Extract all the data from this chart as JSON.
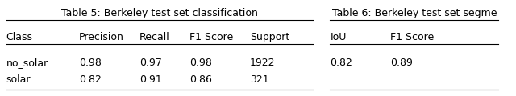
{
  "table5_title": "Table 5: Berkeley test set classification",
  "table5_headers": [
    "Class",
    "Precision",
    "Recall",
    "F1 Score",
    "Support"
  ],
  "table5_rows": [
    [
      "no_solar",
      "0.98",
      "0.97",
      "0.98",
      "1922"
    ],
    [
      "solar",
      "0.82",
      "0.91",
      "0.86",
      "321"
    ]
  ],
  "table6_title": "Table 6: Berkeley test set segme",
  "table6_headers": [
    "IoU",
    "F1 Score"
  ],
  "table6_rows": [
    [
      "0.82",
      "0.89"
    ]
  ],
  "background_color": "#ffffff",
  "font_size": 9,
  "title_font_size": 9
}
